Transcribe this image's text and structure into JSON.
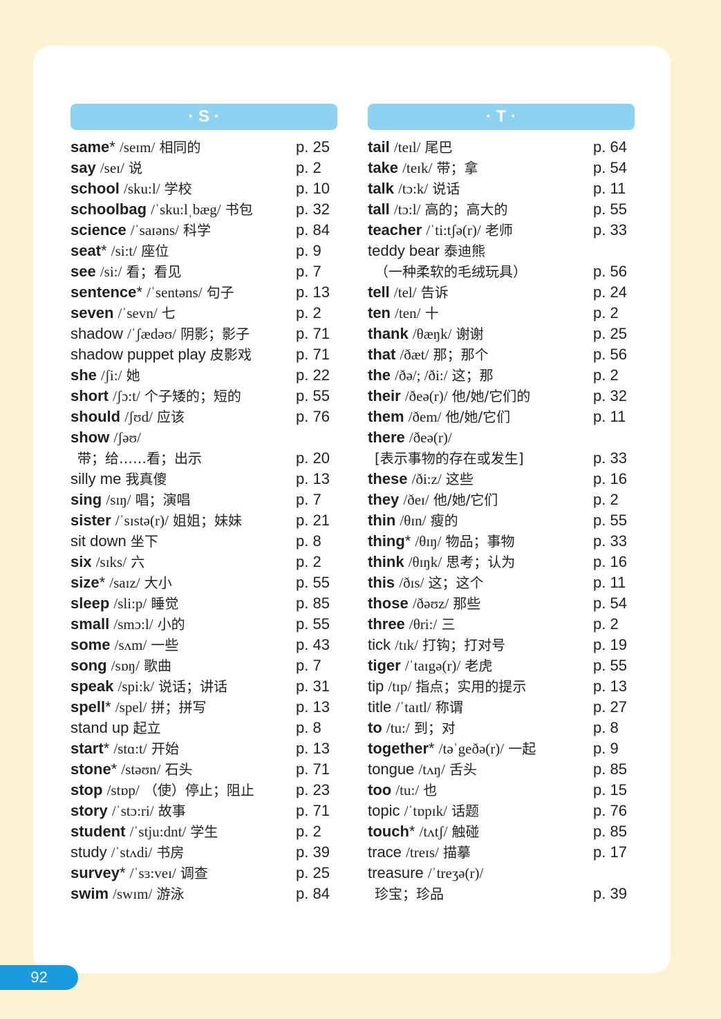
{
  "page_number": "92",
  "colors": {
    "background": "#fbf3d2",
    "header": "#8dd2f1",
    "page_tab": "#1a9be0"
  },
  "sections": [
    {
      "header": "· S ·",
      "entries": [
        {
          "w": "same",
          "b": true,
          "s": "*",
          "ph": "/seɪm/",
          "m": "相同的",
          "p": "p. 25"
        },
        {
          "w": "say",
          "b": true,
          "ph": "/seɪ/",
          "m": "说",
          "p": "p. 2"
        },
        {
          "w": "school",
          "b": true,
          "ph": "/sku:l/",
          "m": "学校",
          "p": "p. 10"
        },
        {
          "w": "schoolbag",
          "b": true,
          "ph": "/ˈsku:lˌbæg/",
          "m": "书包",
          "p": "p. 32"
        },
        {
          "w": "science",
          "b": true,
          "ph": "/ˈsaɪəns/",
          "m": "科学",
          "p": "p. 84"
        },
        {
          "w": "seat",
          "b": true,
          "s": "*",
          "ph": "/si:t/",
          "m": "座位",
          "p": "p. 9"
        },
        {
          "w": "see",
          "b": true,
          "ph": "/si:/",
          "m": "看；看见",
          "p": "p. 7"
        },
        {
          "w": "sentence",
          "b": true,
          "s": "*",
          "ph": "/ˈsentəns/",
          "m": "句子",
          "p": "p. 13"
        },
        {
          "w": "seven",
          "b": true,
          "ph": "/ˈsevn/",
          "m": "七",
          "p": "p. 2"
        },
        {
          "w": "shadow",
          "b": false,
          "ph": "/ˈʃædəʊ/",
          "m": "阴影；影子",
          "p": "p. 71"
        },
        {
          "w": "shadow puppet play",
          "b": false,
          "m": "皮影戏",
          "p": "p. 71"
        },
        {
          "w": "she",
          "b": true,
          "ph": "/ʃi:/",
          "m": "她",
          "p": "p. 22"
        },
        {
          "w": "short",
          "b": true,
          "ph": "/ʃɔ:t/",
          "m": "个子矮的；短的",
          "p": "p. 55"
        },
        {
          "w": "should",
          "b": true,
          "ph": "/ʃʊd/",
          "m": "应该",
          "p": "p. 76"
        },
        {
          "w": "show",
          "b": true,
          "ph": "/ʃəʊ/",
          "l2": "带；给……看；出示",
          "p": "p. 20"
        },
        {
          "w": "silly me",
          "b": false,
          "m": "我真傻",
          "p": "p. 13"
        },
        {
          "w": "sing",
          "b": true,
          "ph": "/sɪŋ/",
          "m": "唱；演唱",
          "p": "p. 7"
        },
        {
          "w": "sister",
          "b": true,
          "ph": "/ˈsɪstə(r)/",
          "m": "姐姐；妹妹",
          "p": "p. 21"
        },
        {
          "w": "sit down",
          "b": false,
          "m": "坐下",
          "p": "p. 8"
        },
        {
          "w": "six",
          "b": true,
          "ph": "/sɪks/",
          "m": "六",
          "p": "p. 2"
        },
        {
          "w": "size",
          "b": true,
          "s": "*",
          "ph": "/saɪz/",
          "m": "大小",
          "p": "p. 55"
        },
        {
          "w": "sleep",
          "b": true,
          "ph": "/sli:p/",
          "m": "睡觉",
          "p": "p. 85"
        },
        {
          "w": "small",
          "b": true,
          "ph": "/smɔ:l/",
          "m": "小的",
          "p": "p. 55"
        },
        {
          "w": "some",
          "b": true,
          "ph": "/sʌm/",
          "m": "一些",
          "p": "p. 43"
        },
        {
          "w": "song",
          "b": true,
          "ph": "/sɒŋ/",
          "m": "歌曲",
          "p": "p. 7"
        },
        {
          "w": "speak",
          "b": true,
          "ph": "/spi:k/",
          "m": "说话；讲话",
          "p": "p. 31"
        },
        {
          "w": "spell",
          "b": true,
          "s": "*",
          "ph": "/spel/",
          "m": "拼；拼写",
          "p": "p. 13"
        },
        {
          "w": "stand up",
          "b": false,
          "m": "起立",
          "p": "p. 8"
        },
        {
          "w": "start",
          "b": true,
          "s": "*",
          "ph": "/stɑ:t/",
          "m": "开始",
          "p": "p. 13"
        },
        {
          "w": "stone",
          "b": true,
          "s": "*",
          "ph": "/stəʊn/",
          "m": "石头",
          "p": "p. 71"
        },
        {
          "w": "stop",
          "b": true,
          "ph": "/stɒp/",
          "m": "（使）停止；阻止",
          "p": "p. 23"
        },
        {
          "w": "story",
          "b": true,
          "ph": "/ˈstɔ:ri/",
          "m": "故事",
          "p": "p. 71"
        },
        {
          "w": "student",
          "b": true,
          "ph": "/ˈstju:dnt/",
          "m": "学生",
          "p": "p. 2"
        },
        {
          "w": "study",
          "b": false,
          "ph": "/ˈstʌdi/",
          "m": "书房",
          "p": "p. 39"
        },
        {
          "w": "survey",
          "b": true,
          "s": "*",
          "ph": "/ˈsɜ:veɪ/",
          "m": "调查",
          "p": "p. 25"
        },
        {
          "w": "swim",
          "b": true,
          "ph": "/swɪm/",
          "m": "游泳",
          "p": "p. 84"
        }
      ]
    },
    {
      "header": "· T ·",
      "entries": [
        {
          "w": "tail",
          "b": true,
          "ph": "/teɪl/",
          "m": "尾巴",
          "p": "p. 64"
        },
        {
          "w": "take",
          "b": true,
          "ph": "/teɪk/",
          "m": "带；拿",
          "p": "p. 54"
        },
        {
          "w": "talk",
          "b": true,
          "ph": "/tɔ:k/",
          "m": "说话",
          "p": "p. 11"
        },
        {
          "w": "tall",
          "b": true,
          "ph": "/tɔ:l/",
          "m": "高的；高大的",
          "p": "p. 55"
        },
        {
          "w": "teacher",
          "b": true,
          "ph": "/ˈti:tʃə(r)/",
          "m": "老师",
          "p": "p. 33"
        },
        {
          "w": "teddy bear",
          "b": false,
          "m": "泰迪熊",
          "l2": "（一种柔软的毛绒玩具）",
          "p": "p. 56"
        },
        {
          "w": "tell",
          "b": true,
          "ph": "/tel/",
          "m": "告诉",
          "p": "p. 24"
        },
        {
          "w": "ten",
          "b": true,
          "ph": "/ten/",
          "m": "十",
          "p": "p. 2"
        },
        {
          "w": "thank",
          "b": true,
          "ph": "/θæŋk/",
          "m": "谢谢",
          "p": "p. 25"
        },
        {
          "w": "that",
          "b": true,
          "ph": "/ðæt/",
          "m": "那；那个",
          "p": "p. 56"
        },
        {
          "w": "the",
          "b": true,
          "ph": "/ðə/; /ði:/",
          "m": "这；那",
          "p": "p. 2"
        },
        {
          "w": "their",
          "b": true,
          "ph": "/ðeə(r)/",
          "m": "他/她/它们的",
          "p": "p. 32"
        },
        {
          "w": "them",
          "b": true,
          "ph": "/ðem/",
          "m": "他/她/它们",
          "p": "p. 11"
        },
        {
          "w": "there",
          "b": true,
          "ph": "/ðeə(r)/",
          "l2": "[表示事物的存在或发生]",
          "p": "p. 33"
        },
        {
          "w": "these",
          "b": true,
          "ph": "/ði:z/",
          "m": "这些",
          "p": "p. 16"
        },
        {
          "w": "they",
          "b": true,
          "ph": "/ðeɪ/",
          "m": "他/她/它们",
          "p": "p. 2"
        },
        {
          "w": "thin",
          "b": true,
          "ph": "/θɪn/",
          "m": "瘦的",
          "p": "p. 55"
        },
        {
          "w": "thing",
          "b": true,
          "s": "*",
          "ph": "/θɪŋ/",
          "m": "物品；事物",
          "p": "p. 33"
        },
        {
          "w": "think",
          "b": true,
          "ph": "/θɪŋk/",
          "m": "思考；认为",
          "p": "p. 16"
        },
        {
          "w": "this",
          "b": true,
          "ph": "/ðɪs/",
          "m": "这；这个",
          "p": "p. 11"
        },
        {
          "w": "those",
          "b": true,
          "ph": "/ðəʊz/",
          "m": "那些",
          "p": "p. 54"
        },
        {
          "w": "three",
          "b": true,
          "ph": "/θri:/",
          "m": "三",
          "p": "p. 2"
        },
        {
          "w": "tick",
          "b": false,
          "ph": "/tɪk/",
          "m": "打钩；打对号",
          "p": "p. 19"
        },
        {
          "w": "tiger",
          "b": true,
          "ph": "/ˈtaɪgə(r)/",
          "m": "老虎",
          "p": "p. 55"
        },
        {
          "w": "tip",
          "b": false,
          "ph": "/tɪp/",
          "m": "指点；实用的提示",
          "p": "p. 13"
        },
        {
          "w": "title",
          "b": false,
          "ph": "/ˈtaɪtl/",
          "m": "称谓",
          "p": "p. 27"
        },
        {
          "w": "to",
          "b": true,
          "ph": "/tu:/",
          "m": "到；对",
          "p": "p. 8"
        },
        {
          "w": "together",
          "b": true,
          "s": "*",
          "ph": "/təˈgeðə(r)/",
          "m": "一起",
          "p": "p. 9"
        },
        {
          "w": "tongue",
          "b": false,
          "ph": "/tʌŋ/",
          "m": "舌头",
          "p": "p. 85"
        },
        {
          "w": "too",
          "b": true,
          "ph": "/tu:/",
          "m": "也",
          "p": "p. 15"
        },
        {
          "w": "topic",
          "b": false,
          "ph": "/ˈtɒpɪk/",
          "m": "话题",
          "p": "p. 76"
        },
        {
          "w": "touch",
          "b": true,
          "s": "*",
          "ph": "/tʌtʃ/",
          "m": "触碰",
          "p": "p. 85"
        },
        {
          "w": "trace",
          "b": false,
          "ph": "/treɪs/",
          "m": "描摹",
          "p": "p. 17"
        },
        {
          "w": "treasure",
          "b": false,
          "ph": "/ˈtreʒə(r)/",
          "l2": "珍宝；珍品",
          "p": "p. 39"
        }
      ]
    }
  ]
}
